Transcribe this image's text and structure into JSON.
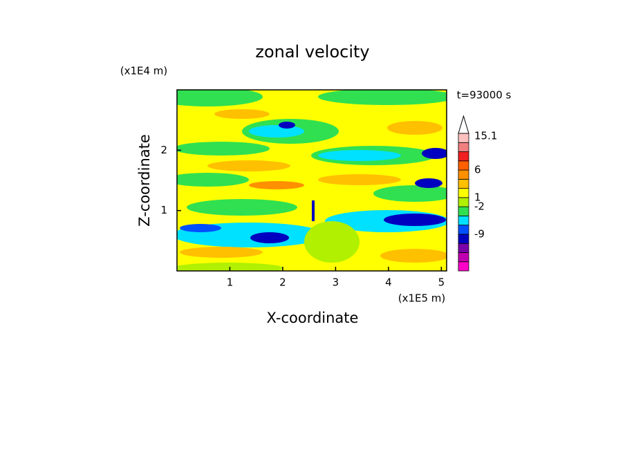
{
  "chart_data": {
    "type": "contour",
    "title": "zonal velocity",
    "x_label": "X-coordinate",
    "y_label": "Z-coordinate",
    "x_unit": "(x1E5 m)",
    "y_unit": "(x1E4 m)",
    "annotation": "t=93000 s",
    "xlim": [
      0,
      5.1
    ],
    "xticks": [
      1,
      2,
      3,
      4,
      5
    ],
    "ylim": [
      0,
      3
    ],
    "yticks": [
      1,
      2
    ],
    "colorbar": {
      "colors": [
        "#ff00c8",
        "#c000b0",
        "#7a00a8",
        "#0000c0",
        "#0050ff",
        "#00e0ff",
        "#30e050",
        "#b0f000",
        "#ffff00",
        "#ffc000",
        "#ff9000",
        "#ff6000",
        "#f02020",
        "#f08080",
        "#ffc0c0"
      ],
      "ticks": [
        -9,
        -2,
        1,
        6,
        15.1
      ]
    }
  }
}
